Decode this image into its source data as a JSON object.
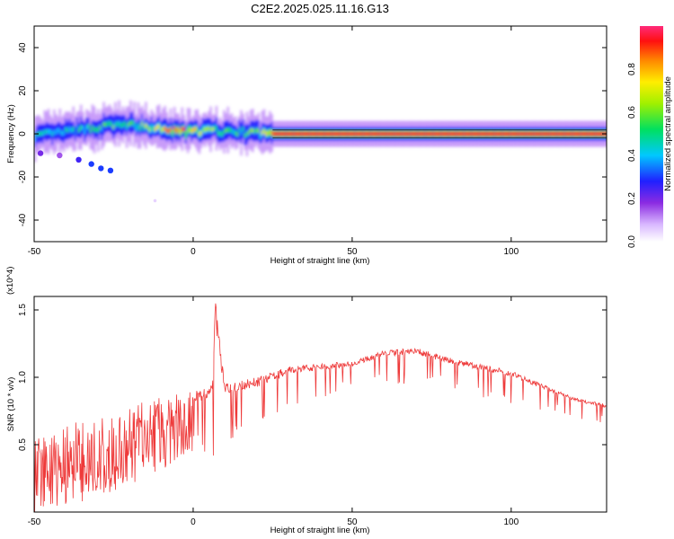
{
  "title": "C2E2.2025.025.11.16.G13",
  "colors": {
    "snr_line": "#ee3a3a",
    "background": "#ffffff",
    "frame": "#000000"
  },
  "chart_data": [
    {
      "type": "heatmap",
      "title": "C2E2.2025.025.11.16.G13",
      "xlabel": "Height of straight line (km)",
      "ylabel": "Frequency (Hz)",
      "xlim": [
        -50,
        130
      ],
      "ylim": [
        -50,
        50
      ],
      "x_ticks": [
        -50,
        0,
        50,
        100
      ],
      "y_ticks": [
        40,
        20,
        0,
        -20,
        -40
      ],
      "colorbar": {
        "label": "Normalized spectral amplitude",
        "range": [
          0.0,
          1.0
        ],
        "ticks": [
          0.0,
          0.2,
          0.4,
          0.6,
          0.8
        ]
      },
      "ridge_center_hz": [
        {
          "x": -50,
          "y": -1
        },
        {
          "x": -45,
          "y": 0
        },
        {
          "x": -40,
          "y": 1
        },
        {
          "x": -35,
          "y": 2
        },
        {
          "x": -30,
          "y": 3
        },
        {
          "x": -25,
          "y": 4
        },
        {
          "x": -20,
          "y": 4
        },
        {
          "x": -15,
          "y": 3
        },
        {
          "x": -10,
          "y": 2
        },
        {
          "x": -5,
          "y": 1
        },
        {
          "x": 0,
          "y": 1
        },
        {
          "x": 5,
          "y": 1.5
        },
        {
          "x": 10,
          "y": 1
        },
        {
          "x": 20,
          "y": 0.5
        },
        {
          "x": 25,
          "y": 0
        },
        {
          "x": 130,
          "y": 0
        }
      ],
      "ridge_amplitude": [
        {
          "x": -50,
          "v": 0.5
        },
        {
          "x": -40,
          "v": 0.5
        },
        {
          "x": -30,
          "v": 0.55
        },
        {
          "x": -20,
          "v": 0.6
        },
        {
          "x": -10,
          "v": 0.75
        },
        {
          "x": -5,
          "v": 0.95
        },
        {
          "x": 0,
          "v": 0.8
        },
        {
          "x": 10,
          "v": 0.55
        },
        {
          "x": 20,
          "v": 0.6
        },
        {
          "x": 25,
          "v": 0.95
        },
        {
          "x": 130,
          "v": 0.95
        }
      ],
      "isolated_blobs": [
        {
          "x": -48,
          "y": -9,
          "v": 0.2
        },
        {
          "x": -42,
          "y": -10,
          "v": 0.15
        },
        {
          "x": -36,
          "y": -12,
          "v": 0.25
        },
        {
          "x": -32,
          "y": -14,
          "v": 0.3
        },
        {
          "x": -29,
          "y": -16,
          "v": 0.3
        },
        {
          "x": -26,
          "y": -17,
          "v": 0.3
        },
        {
          "x": -12,
          "y": -31,
          "v": 0.05
        }
      ]
    },
    {
      "type": "line",
      "xlabel": "Height of straight line (km)",
      "ylabel": "SNR (10 * v/v)",
      "y_scale_label": "(x10^4)",
      "xlim": [
        -50,
        130
      ],
      "ylim": [
        0.0,
        1.6
      ],
      "x_ticks": [
        -50,
        0,
        50,
        100
      ],
      "y_ticks": [
        0.5,
        1.0,
        1.5
      ],
      "series": [
        {
          "color": "#ee3a3a",
          "envelope_upper": [
            {
              "x": -50,
              "v": 0.55
            },
            {
              "x": -40,
              "v": 0.65
            },
            {
              "x": -30,
              "v": 0.7
            },
            {
              "x": -20,
              "v": 0.8
            },
            {
              "x": -10,
              "v": 0.85
            },
            {
              "x": 0,
              "v": 0.9
            },
            {
              "x": 6,
              "v": 0.95
            },
            {
              "x": 7,
              "v": 1.56
            },
            {
              "x": 10,
              "v": 0.95
            },
            {
              "x": 20,
              "v": 1.0
            },
            {
              "x": 30,
              "v": 1.08
            },
            {
              "x": 40,
              "v": 1.1
            },
            {
              "x": 50,
              "v": 1.12
            },
            {
              "x": 60,
              "v": 1.2
            },
            {
              "x": 70,
              "v": 1.22
            },
            {
              "x": 80,
              "v": 1.15
            },
            {
              "x": 90,
              "v": 1.1
            },
            {
              "x": 100,
              "v": 1.05
            },
            {
              "x": 110,
              "v": 0.95
            },
            {
              "x": 120,
              "v": 0.85
            },
            {
              "x": 130,
              "v": 0.8
            }
          ],
          "envelope_lower": [
            {
              "x": -50,
              "v": 0.0
            },
            {
              "x": -40,
              "v": 0.05
            },
            {
              "x": -30,
              "v": 0.1
            },
            {
              "x": -20,
              "v": 0.2
            },
            {
              "x": -10,
              "v": 0.3
            },
            {
              "x": 0,
              "v": 0.45
            },
            {
              "x": 7,
              "v": 0.25
            },
            {
              "x": 10,
              "v": 0.5
            },
            {
              "x": 20,
              "v": 0.6
            },
            {
              "x": 30,
              "v": 0.75
            },
            {
              "x": 40,
              "v": 0.85
            },
            {
              "x": 50,
              "v": 0.9
            },
            {
              "x": 60,
              "v": 0.95
            },
            {
              "x": 70,
              "v": 0.95
            },
            {
              "x": 80,
              "v": 0.9
            },
            {
              "x": 90,
              "v": 0.85
            },
            {
              "x": 100,
              "v": 0.8
            },
            {
              "x": 110,
              "v": 0.75
            },
            {
              "x": 120,
              "v": 0.7
            },
            {
              "x": 130,
              "v": 0.65
            }
          ]
        }
      ]
    }
  ]
}
